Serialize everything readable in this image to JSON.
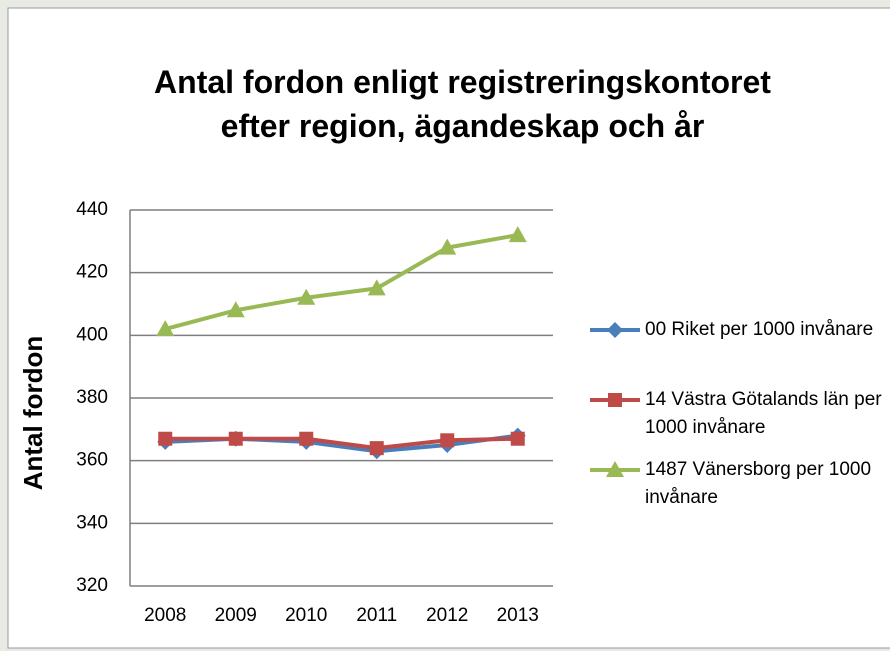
{
  "chart_data": {
    "type": "line",
    "title": "Antal fordon enligt registreringskontoret efter region, ägandeskap och år",
    "y_label": "Antal fordon",
    "categories": [
      "2008",
      "2009",
      "2010",
      "2011",
      "2012",
      "2013"
    ],
    "series": [
      {
        "name": "00 Riket per 1000 invånare",
        "color": "#4a7ebb",
        "marker": "diamond",
        "values": [
          366,
          367,
          366,
          363,
          365,
          368
        ]
      },
      {
        "name": "14 Västra Götalands län per 1000 invånare",
        "color": "#be4b48",
        "marker": "square",
        "values": [
          367,
          367,
          367,
          364,
          366.5,
          367
        ]
      },
      {
        "name": "1487 Vänersborg per 1000 invånare",
        "color": "#98b954",
        "marker": "triangle",
        "values": [
          402,
          408,
          412,
          415,
          428,
          432
        ]
      }
    ],
    "ylim": [
      320,
      440
    ],
    "yticks": [
      320,
      340,
      360,
      380,
      400,
      420,
      440
    ],
    "grid": true,
    "legend": "right"
  }
}
